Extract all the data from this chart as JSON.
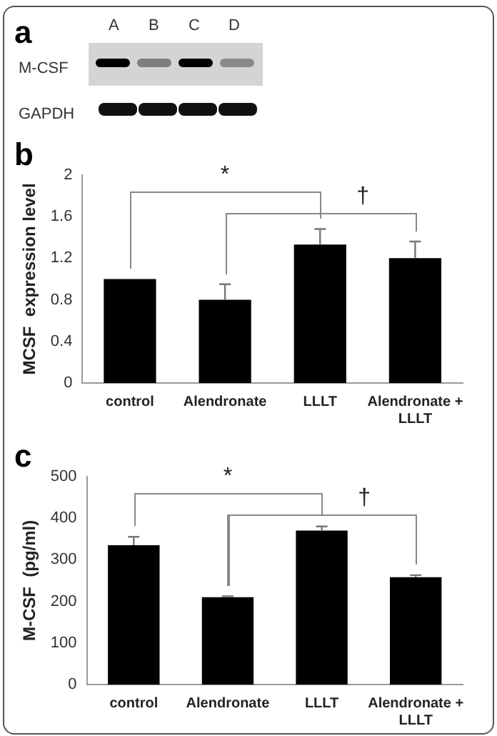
{
  "chart_data": [
    {
      "type": "other",
      "title": "a",
      "annotations": [
        "A",
        "B",
        "C",
        "D",
        "M-CSF",
        "GAPDH"
      ]
    },
    {
      "type": "bar",
      "title": "b",
      "ylabel": "MCSF  expression level",
      "categories": [
        "control",
        "Alendronate",
        "LLLT",
        "Alendronate + LLLT"
      ],
      "values": [
        1,
        0.8,
        1.33,
        1.2
      ],
      "errors": [
        null,
        0.15,
        0.15,
        0.16
      ],
      "color": "#000000",
      "ylim": [
        0,
        2
      ],
      "yticks": [
        0,
        0.4,
        0.8,
        1.2,
        1.6,
        2
      ],
      "grid": false,
      "legend": false,
      "annotations": [
        "*",
        "†"
      ]
    },
    {
      "type": "bar",
      "title": "c",
      "ylabel": "M-CSF  (pg/ml)",
      "categories": [
        "control",
        "Alendronate",
        "LLLT",
        "Alendronate + LLLT"
      ],
      "values": [
        335,
        210,
        370,
        258
      ],
      "errors": [
        20,
        2,
        10,
        5
      ],
      "color": "#000000",
      "ylim": [
        0,
        500
      ],
      "yticks": [
        0,
        100,
        200,
        300,
        400,
        500
      ],
      "grid": false,
      "legend": false,
      "annotations": [
        "*",
        "†"
      ]
    }
  ]
}
